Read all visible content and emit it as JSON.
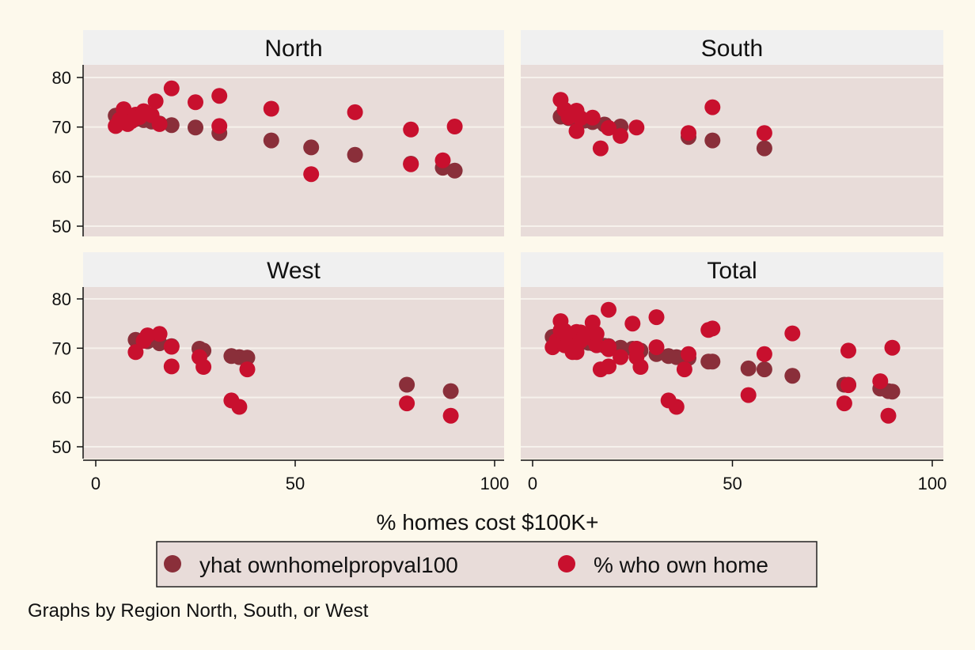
{
  "colors": {
    "background": "#fdf9ec",
    "plot_region": "#e8dcd9",
    "strip": "#f0f0f0",
    "grid": "#f6f1ec",
    "predicted_marker": "#8a2f3a",
    "observed_marker": "#c8102e"
  },
  "chart_data": {
    "type": "scatter",
    "layout": "2x2 small multiples by region",
    "xlabel": "% homes cost $100K+",
    "ylabel": "",
    "xlim": [
      0,
      100
    ],
    "ylim": [
      47,
      82
    ],
    "x_ticks": [
      0,
      50,
      100
    ],
    "y_ticks": [
      50,
      60,
      70,
      80
    ],
    "grid": true,
    "legend_position": "bottom",
    "legend": [
      "yhat ownhomelpropval100",
      "% who own home"
    ],
    "note": "Graphs by Region North, South, or West",
    "panels": [
      {
        "title": "North",
        "series": [
          {
            "name": "yhat ownhomelpropval100",
            "points": [
              [
                5,
                72.3
              ],
              [
                7,
                72
              ],
              [
                8,
                71.6
              ],
              [
                10,
                71.6
              ],
              [
                12,
                71.4
              ],
              [
                14,
                71.1
              ],
              [
                16,
                70.7
              ],
              [
                19,
                70.4
              ],
              [
                25,
                69.9
              ],
              [
                31,
                68.8
              ],
              [
                44,
                67.3
              ],
              [
                54,
                65.9
              ],
              [
                65,
                64.4
              ],
              [
                79,
                62.6
              ],
              [
                87,
                61.8
              ],
              [
                90,
                61.2
              ]
            ]
          },
          {
            "name": "% who own home",
            "points": [
              [
                5,
                70.2
              ],
              [
                6,
                71.5
              ],
              [
                7,
                73.6
              ],
              [
                8,
                72.4
              ],
              [
                8,
                70.6
              ],
              [
                9,
                71.2
              ],
              [
                10,
                72.5
              ],
              [
                11,
                72.0
              ],
              [
                12,
                73.2
              ],
              [
                14,
                72.4
              ],
              [
                15,
                75.2
              ],
              [
                16,
                70.6
              ],
              [
                19,
                77.8
              ],
              [
                25,
                75.0
              ],
              [
                31,
                76.3
              ],
              [
                31,
                70.2
              ],
              [
                44,
                73.7
              ],
              [
                54,
                60.5
              ],
              [
                65,
                73.0
              ],
              [
                79,
                69.5
              ],
              [
                79,
                62.5
              ],
              [
                87,
                63.3
              ],
              [
                90,
                70.1
              ]
            ]
          }
        ]
      },
      {
        "title": "South",
        "series": [
          {
            "name": "yhat ownhomelpropval100",
            "points": [
              [
                7,
                72.1
              ],
              [
                9,
                71.8
              ],
              [
                11,
                71.6
              ],
              [
                13,
                71.3
              ],
              [
                15,
                71.0
              ],
              [
                18,
                70.5
              ],
              [
                22,
                70.1
              ],
              [
                39,
                68.0
              ],
              [
                45,
                67.3
              ],
              [
                58,
                65.7
              ]
            ]
          },
          {
            "name": "% who own home",
            "points": [
              [
                7,
                75.5
              ],
              [
                8,
                73.5
              ],
              [
                9,
                72.0
              ],
              [
                11,
                69.2
              ],
              [
                11,
                73.3
              ],
              [
                12,
                71.8
              ],
              [
                15,
                71.9
              ],
              [
                17,
                65.7
              ],
              [
                19,
                69.8
              ],
              [
                22,
                68.2
              ],
              [
                26,
                69.9
              ],
              [
                39,
                68.8
              ],
              [
                45,
                74.0
              ],
              [
                58,
                68.8
              ]
            ]
          }
        ]
      },
      {
        "title": "West",
        "series": [
          {
            "name": "yhat ownhomelpropval100",
            "points": [
              [
                10,
                71.7
              ],
              [
                13,
                71.4
              ],
              [
                16,
                71.0
              ],
              [
                19,
                70.4
              ],
              [
                26,
                69.9
              ],
              [
                27,
                69.5
              ],
              [
                34,
                68.4
              ],
              [
                36,
                68.2
              ],
              [
                38,
                68.1
              ],
              [
                78,
                62.6
              ],
              [
                89,
                61.3
              ]
            ]
          },
          {
            "name": "% who own home",
            "points": [
              [
                10,
                69.2
              ],
              [
                12,
                71.5
              ],
              [
                13,
                72.6
              ],
              [
                16,
                72.9
              ],
              [
                19,
                70.3
              ],
              [
                19,
                66.3
              ],
              [
                26,
                68.2
              ],
              [
                27,
                66.2
              ],
              [
                34,
                59.4
              ],
              [
                36,
                58.1
              ],
              [
                38,
                65.7
              ],
              [
                78,
                58.8
              ],
              [
                89,
                56.3
              ]
            ]
          }
        ]
      },
      {
        "title": "Total",
        "series": [
          {
            "name": "yhat ownhomelpropval100",
            "points": [
              [
                5,
                72.3
              ],
              [
                7,
                72
              ],
              [
                8,
                71.6
              ],
              [
                10,
                71.6
              ],
              [
                12,
                71.4
              ],
              [
                14,
                71.1
              ],
              [
                16,
                70.7
              ],
              [
                19,
                70.4
              ],
              [
                25,
                69.9
              ],
              [
                31,
                68.8
              ],
              [
                44,
                67.3
              ],
              [
                54,
                65.9
              ],
              [
                65,
                64.4
              ],
              [
                79,
                62.6
              ],
              [
                87,
                61.8
              ],
              [
                90,
                61.2
              ],
              [
                7,
                72.1
              ],
              [
                9,
                71.8
              ],
              [
                11,
                71.6
              ],
              [
                13,
                71.3
              ],
              [
                15,
                71.0
              ],
              [
                18,
                70.5
              ],
              [
                22,
                70.1
              ],
              [
                39,
                68.0
              ],
              [
                45,
                67.3
              ],
              [
                58,
                65.7
              ],
              [
                10,
                71.7
              ],
              [
                13,
                71.4
              ],
              [
                16,
                71.0
              ],
              [
                19,
                70.4
              ],
              [
                26,
                69.9
              ],
              [
                27,
                69.5
              ],
              [
                34,
                68.4
              ],
              [
                36,
                68.2
              ],
              [
                38,
                68.1
              ],
              [
                78,
                62.6
              ],
              [
                89,
                61.3
              ]
            ]
          },
          {
            "name": "% who own home",
            "points": [
              [
                5,
                70.2
              ],
              [
                6,
                71.5
              ],
              [
                7,
                73.6
              ],
              [
                8,
                72.4
              ],
              [
                8,
                70.6
              ],
              [
                9,
                71.2
              ],
              [
                10,
                72.5
              ],
              [
                11,
                72.0
              ],
              [
                12,
                73.2
              ],
              [
                14,
                72.4
              ],
              [
                15,
                75.2
              ],
              [
                16,
                70.6
              ],
              [
                19,
                77.8
              ],
              [
                25,
                75.0
              ],
              [
                31,
                76.3
              ],
              [
                31,
                70.2
              ],
              [
                44,
                73.7
              ],
              [
                54,
                60.5
              ],
              [
                65,
                73.0
              ],
              [
                79,
                69.5
              ],
              [
                79,
                62.5
              ],
              [
                87,
                63.3
              ],
              [
                90,
                70.1
              ],
              [
                7,
                75.5
              ],
              [
                8,
                73.5
              ],
              [
                9,
                72.0
              ],
              [
                11,
                69.2
              ],
              [
                11,
                73.3
              ],
              [
                12,
                71.8
              ],
              [
                15,
                71.9
              ],
              [
                17,
                65.7
              ],
              [
                19,
                69.8
              ],
              [
                22,
                68.2
              ],
              [
                26,
                69.9
              ],
              [
                39,
                68.8
              ],
              [
                45,
                74.0
              ],
              [
                58,
                68.8
              ],
              [
                10,
                69.2
              ],
              [
                12,
                71.5
              ],
              [
                13,
                72.6
              ],
              [
                16,
                72.9
              ],
              [
                19,
                70.3
              ],
              [
                19,
                66.3
              ],
              [
                26,
                68.2
              ],
              [
                27,
                66.2
              ],
              [
                34,
                59.4
              ],
              [
                36,
                58.1
              ],
              [
                38,
                65.7
              ],
              [
                78,
                58.8
              ],
              [
                89,
                56.3
              ]
            ]
          }
        ]
      }
    ]
  }
}
